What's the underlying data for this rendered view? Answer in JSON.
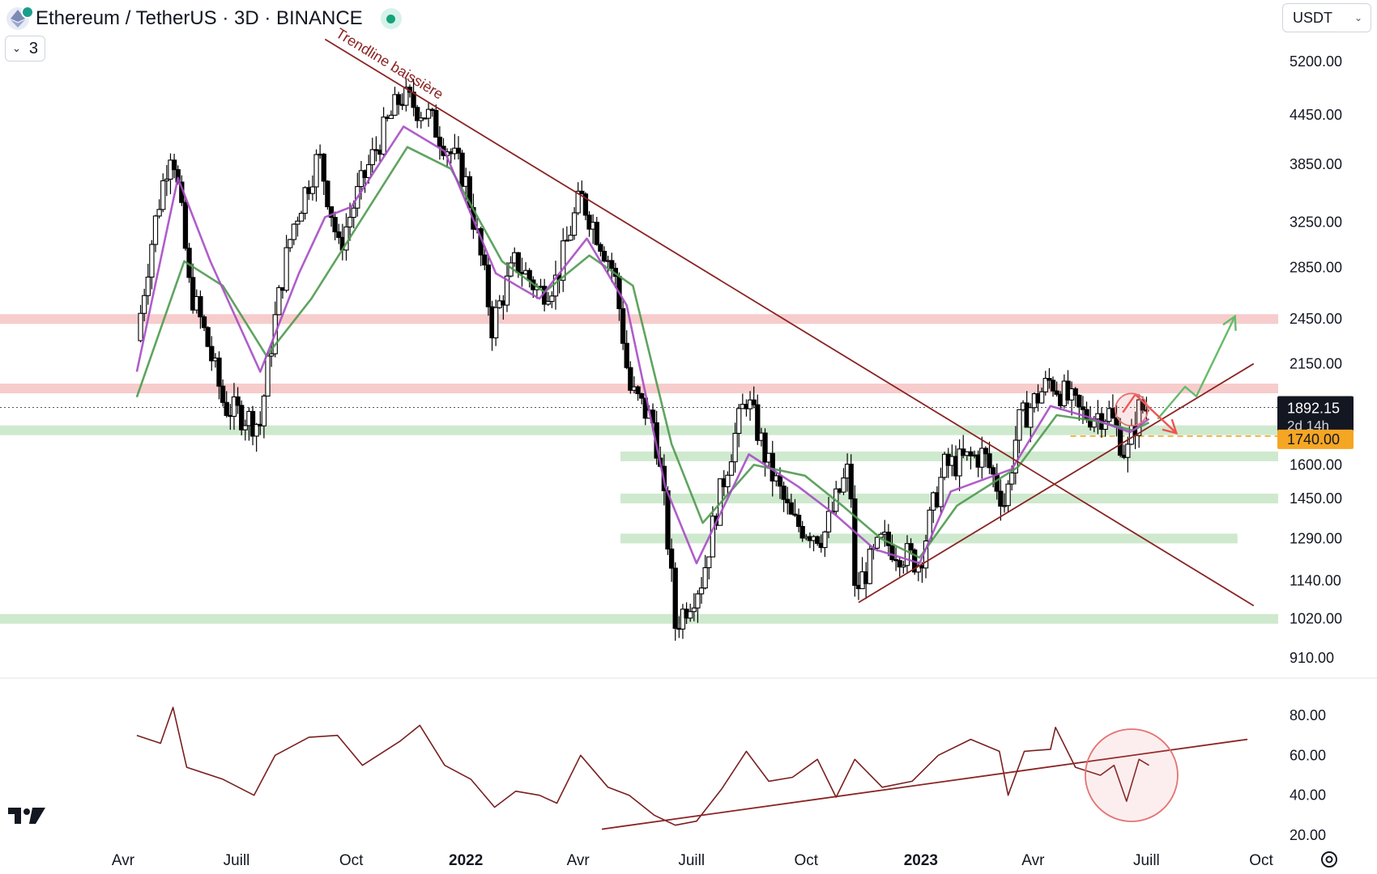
{
  "header": {
    "title": "Ethereum / TetherUS · 3D · BINANCE",
    "collapse_count": "3",
    "currency": "USDT"
  },
  "chart_data": [
    {
      "type": "candlestick",
      "title": "Ethereum / TetherUS · 3D · BINANCE",
      "y_scale": "log",
      "ylim": [
        830,
        5700
      ],
      "y_ticks": [
        "5200.00",
        "4450.00",
        "3850.00",
        "3250.00",
        "2850.00",
        "2450.00",
        "2150.00",
        "1892.15",
        "1740.00",
        "1600.00",
        "1450.00",
        "1290.00",
        "1140.00",
        "1020.00",
        "910.00"
      ],
      "x_ticks": [
        "Avr",
        "Juill",
        "Oct",
        "2022",
        "Avr",
        "Juill",
        "Oct",
        "2023",
        "Avr",
        "Juill",
        "Oct"
      ],
      "x_range": [
        "2021-04-12",
        "2023-10-31"
      ],
      "close_series": {
        "x": [
          "2021-04-12",
          "2021-05-10",
          "2021-05-24",
          "2021-06-21",
          "2021-07-20",
          "2021-08-15",
          "2021-09-05",
          "2021-09-21",
          "2021-10-20",
          "2021-11-10",
          "2021-12-01",
          "2021-12-31",
          "2022-01-22",
          "2022-02-10",
          "2022-03-01",
          "2022-03-15",
          "2022-04-03",
          "2022-04-30",
          "2022-05-12",
          "2022-06-01",
          "2022-06-18",
          "2022-07-10",
          "2022-08-14",
          "2022-09-01",
          "2022-09-20",
          "2022-10-15",
          "2022-11-05",
          "2022-11-09",
          "2022-12-01",
          "2022-12-31",
          "2023-01-20",
          "2023-02-20",
          "2023-03-10",
          "2023-03-20",
          "2023-04-15",
          "2023-05-10",
          "2023-06-01",
          "2023-06-15",
          "2023-06-25",
          "2023-07-03"
        ],
        "y": [
          2300,
          4100,
          2700,
          1900,
          1800,
          3200,
          3950,
          3000,
          4000,
          4700,
          4450,
          3700,
          2400,
          2900,
          2650,
          2750,
          3500,
          2800,
          2000,
          1800,
          1000,
          1150,
          1950,
          1590,
          1350,
          1300,
          1590,
          1100,
          1280,
          1200,
          1590,
          1650,
          1420,
          1800,
          2050,
          1850,
          1860,
          1640,
          1880,
          1892.15
        ]
      },
      "ema_fast": {
        "x": [
          "2021-04-12",
          "2021-05-15",
          "2021-06-10",
          "2021-07-20",
          "2021-08-20",
          "2021-09-10",
          "2021-10-01",
          "2021-11-12",
          "2021-12-15",
          "2022-01-25",
          "2022-03-01",
          "2022-04-08",
          "2022-05-10",
          "2022-06-10",
          "2022-07-05",
          "2022-08-16",
          "2022-09-25",
          "2022-10-25",
          "2022-11-25",
          "2022-12-31",
          "2023-01-25",
          "2023-03-15",
          "2023-04-15",
          "2023-05-15",
          "2023-06-18",
          "2023-07-03"
        ],
        "y": [
          2100,
          3700,
          2900,
          2100,
          2800,
          3300,
          3400,
          4300,
          4000,
          2800,
          2600,
          3100,
          2550,
          1500,
          1200,
          1650,
          1500,
          1380,
          1250,
          1200,
          1480,
          1580,
          1900,
          1840,
          1760,
          1830
        ]
      },
      "ema_slow": {
        "x": [
          "2021-04-12",
          "2021-05-20",
          "2021-06-20",
          "2021-07-25",
          "2021-08-30",
          "2021-10-05",
          "2021-11-15",
          "2021-12-20",
          "2022-01-30",
          "2022-03-05",
          "2022-04-10",
          "2022-05-15",
          "2022-06-15",
          "2022-07-10",
          "2022-08-20",
          "2022-09-30",
          "2022-10-30",
          "2022-11-30",
          "2022-12-31",
          "2023-01-30",
          "2023-03-20",
          "2023-04-20",
          "2023-05-20",
          "2023-06-20",
          "2023-07-03"
        ],
        "y": [
          1950,
          2900,
          2700,
          2200,
          2600,
          3200,
          4050,
          3800,
          2900,
          2650,
          2950,
          2700,
          1700,
          1350,
          1600,
          1550,
          1420,
          1290,
          1220,
          1420,
          1590,
          1850,
          1820,
          1770,
          1810
        ]
      },
      "levels": {
        "resistance": [
          2450,
          2000
        ],
        "support": [
          1770,
          1640,
          1450,
          1290,
          1020
        ],
        "dashed": 1740
      },
      "trendlines": [
        {
          "label": "Trendline baissière",
          "from": [
            "2021-09-10",
            5550
          ],
          "to": [
            "2023-09-25",
            1060
          ]
        },
        {
          "label": "",
          "from": [
            "2022-11-12",
            1070
          ],
          "to": [
            "2023-09-25",
            2150
          ]
        }
      ],
      "price_marks": [
        {
          "value": "1892.15",
          "sub": "2d 14h",
          "color": "#131722"
        },
        {
          "value": "1740.00",
          "color": "#f5a623"
        }
      ]
    },
    {
      "type": "line",
      "ylim": [
        12,
        92
      ],
      "y_ticks": [
        "80.00",
        "60.00",
        "40.00",
        "20.00"
      ],
      "x": [
        "2021-04-12",
        "2021-05-01",
        "2021-05-11",
        "2021-05-22",
        "2021-06-20",
        "2021-07-15",
        "2021-08-01",
        "2021-08-28",
        "2021-09-20",
        "2021-10-10",
        "2021-11-09",
        "2021-11-25",
        "2021-12-15",
        "2022-01-05",
        "2022-01-24",
        "2022-02-10",
        "2022-03-01",
        "2022-03-15",
        "2022-04-03",
        "2022-04-25",
        "2022-05-12",
        "2022-06-01",
        "2022-06-18",
        "2022-07-05",
        "2022-07-25",
        "2022-08-14",
        "2022-09-01",
        "2022-09-20",
        "2022-10-10",
        "2022-10-25",
        "2022-11-09",
        "2022-12-01",
        "2022-12-25",
        "2023-01-15",
        "2023-02-10",
        "2023-03-05",
        "2023-03-12",
        "2023-03-25",
        "2023-04-15",
        "2023-04-19",
        "2023-05-05",
        "2023-05-25",
        "2023-06-05",
        "2023-06-15",
        "2023-06-25",
        "2023-07-03"
      ],
      "values": [
        70,
        66,
        84,
        54,
        48,
        40,
        60,
        69,
        70,
        55,
        67,
        75,
        55,
        48,
        34,
        42,
        40,
        36,
        60,
        44,
        40,
        30,
        25,
        27,
        43,
        62,
        47,
        49,
        58,
        39,
        58,
        44,
        47,
        60,
        68,
        62,
        40,
        62,
        63,
        74,
        54,
        50,
        55,
        37,
        58,
        55
      ],
      "trendline": {
        "from": [
          "2022-04-20",
          23
        ],
        "to": [
          "2023-09-20",
          68
        ]
      }
    }
  ],
  "x_axis": {
    "labels": [
      {
        "text": "Avr",
        "date": "2021-04-01",
        "bold": false
      },
      {
        "text": "Juill",
        "date": "2021-07-01",
        "bold": false
      },
      {
        "text": "Oct",
        "date": "2021-10-01",
        "bold": false
      },
      {
        "text": "2022",
        "date": "2022-01-01",
        "bold": true
      },
      {
        "text": "Avr",
        "date": "2022-04-01",
        "bold": false
      },
      {
        "text": "Juill",
        "date": "2022-07-01",
        "bold": false
      },
      {
        "text": "Oct",
        "date": "2022-10-01",
        "bold": false
      },
      {
        "text": "2023",
        "date": "2023-01-01",
        "bold": true
      },
      {
        "text": "Avr",
        "date": "2023-04-01",
        "bold": false
      },
      {
        "text": "Juill",
        "date": "2023-07-01",
        "bold": false
      },
      {
        "text": "Oct",
        "date": "2023-10-01",
        "bold": false
      }
    ]
  },
  "colors": {
    "candle": "#000000",
    "ema_fast": "#a64dc4",
    "ema_slow": "#4e9a4e",
    "trendline": "#8b2323",
    "resistance_zone": "#f7cccc",
    "support_zone": "#cfe9cf",
    "up_arrow": "#66bb6a",
    "down_arrow": "#ef5350",
    "highlight_circle": "#e57373",
    "last_price_bg": "#131722",
    "dashed_bg": "#f5a623",
    "rsi_line": "#7a1f1f"
  },
  "icons": {
    "coin": "ethereum-icon",
    "live": "market-open-dot",
    "settings": "gear-icon"
  }
}
